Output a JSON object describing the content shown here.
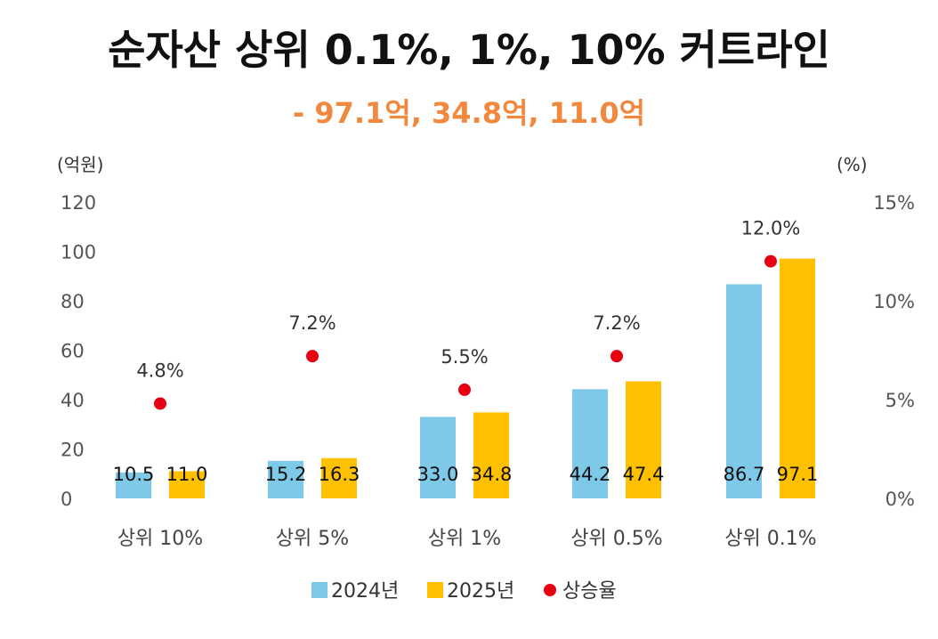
{
  "chart_data": {
    "type": "bar",
    "title": "순자산 상위 0.1%, 1%, 10% 커트라인",
    "subtitle": "- 97.1억, 34.8억, 11.0억",
    "ylabel": "(억원)",
    "y2label": "(%)",
    "ylim": [
      0,
      120
    ],
    "y2lim": [
      0,
      15
    ],
    "yticks": [
      "0",
      "20",
      "40",
      "60",
      "80",
      "100",
      "120"
    ],
    "y2ticks": [
      "0%",
      "5%",
      "10%",
      "15%"
    ],
    "categories": [
      "상위 10%",
      "상위 5%",
      "상위 1%",
      "상위 0.5%",
      "상위 0.1%"
    ],
    "series": [
      {
        "name": "2024년",
        "type": "bar",
        "color": "#7ec8e8",
        "values": [
          10.5,
          15.2,
          33.0,
          44.2,
          86.7
        ],
        "labels": [
          "10.5",
          "15.2",
          "33.0",
          "44.2",
          "86.7"
        ]
      },
      {
        "name": "2025년",
        "type": "bar",
        "color": "#ffc000",
        "values": [
          11.0,
          16.3,
          34.8,
          47.4,
          97.1
        ],
        "labels": [
          "11.0",
          "16.3",
          "34.8",
          "47.4",
          "97.1"
        ]
      },
      {
        "name": "상승율",
        "type": "scatter",
        "axis": "right",
        "color": "#e60012",
        "values": [
          4.8,
          7.2,
          5.5,
          7.2,
          12.0
        ],
        "labels": [
          "4.8%",
          "7.2%",
          "5.5%",
          "7.2%",
          "12.0%"
        ]
      }
    ],
    "legend": "bottom",
    "grid": false
  },
  "colors": {
    "subtitle": "#f0883e",
    "text": "#111111",
    "axis": "#555555"
  }
}
